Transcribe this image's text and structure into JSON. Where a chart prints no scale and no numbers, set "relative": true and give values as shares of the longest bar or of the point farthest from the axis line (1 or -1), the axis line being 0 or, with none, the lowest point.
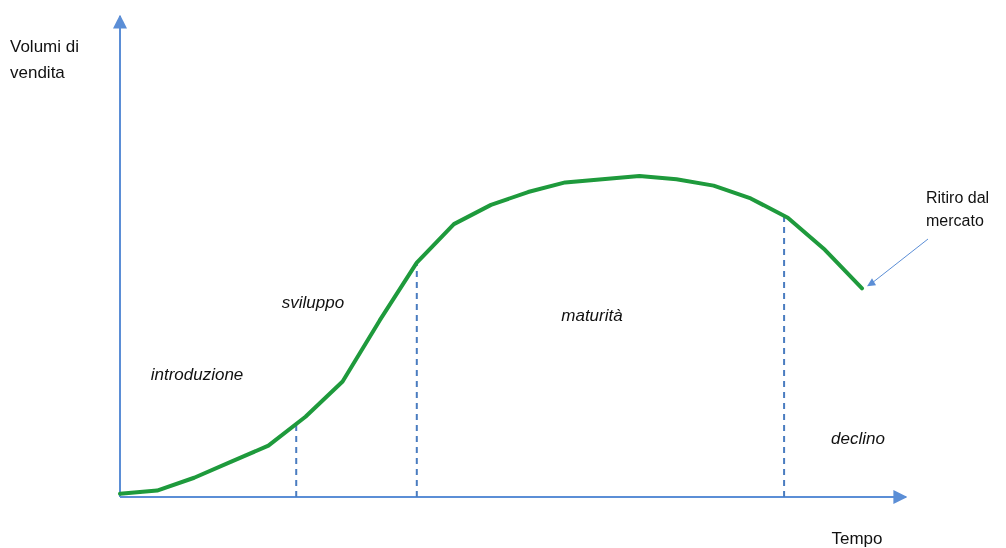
{
  "chart_data": {
    "type": "line",
    "relative": true,
    "xlabel": "Tempo",
    "categories": [
      null,
      null,
      null,
      null,
      null,
      null,
      null,
      null,
      null,
      null,
      null,
      null,
      null,
      null,
      null,
      null,
      null,
      null,
      null,
      null,
      null
    ],
    "series": [
      {
        "color": "#1e9a3c",
        "values": [
          0.01,
          0.02,
          0.06,
          0.11,
          0.16,
          0.25,
          0.36,
          0.55,
          0.73,
          0.85,
          0.91,
          0.95,
          0.98,
          0.99,
          1.0,
          0.99,
          0.97,
          0.93,
          0.87,
          0.77,
          0.65
        ]
      }
    ],
    "annotations": [
      "introduzione",
      "sviluppo",
      "maturità",
      "declino",
      "Ritiro dal mercato",
      "Volumi di vendita"
    ],
    "line_style": "solid"
  }
}
